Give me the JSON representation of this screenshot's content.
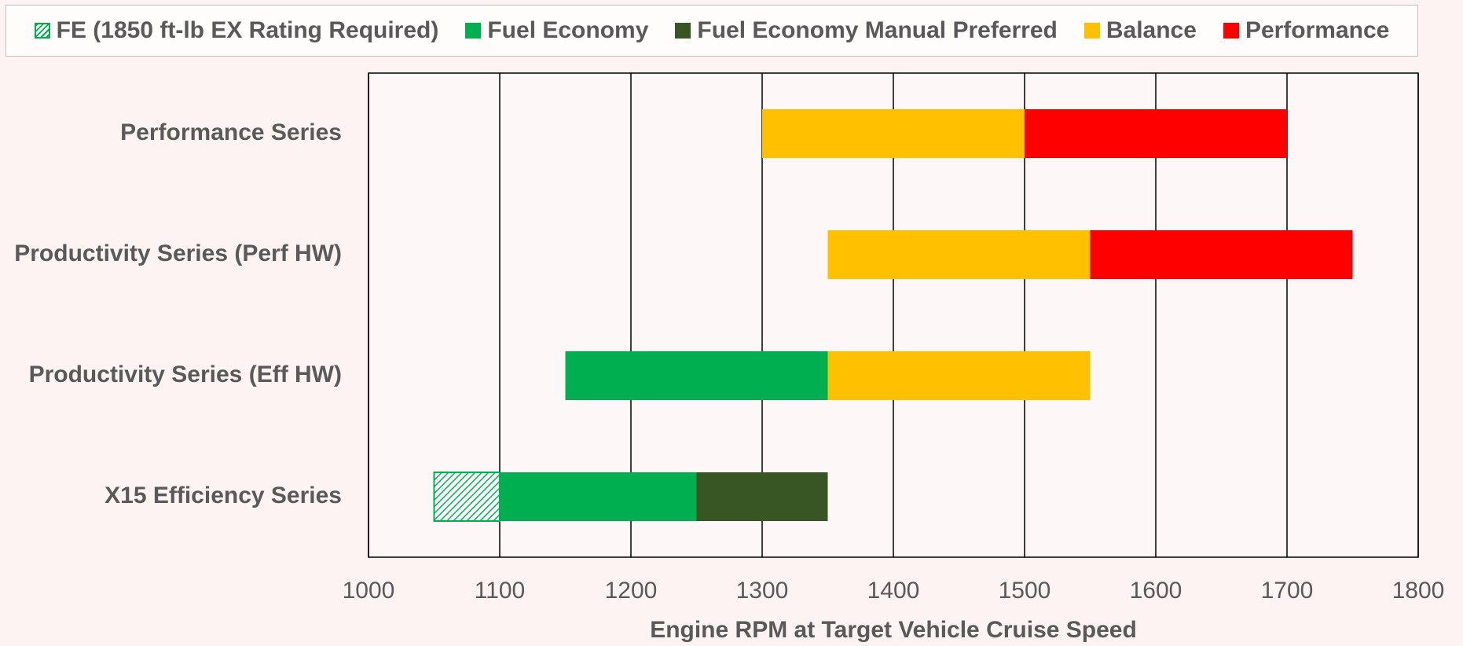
{
  "chart_data": {
    "type": "floating-bar",
    "x_label": "Engine RPM at Target Vehicle Cruise Speed",
    "categories": [
      "Performance Series",
      "Productivity Series (Perf HW)",
      "Productivity Series (Eff HW)",
      "X15 Efficiency Series"
    ],
    "series": [
      {
        "name": "FE (1850 ft-lb EX Rating Required)",
        "color": "#00b050",
        "hatch": true,
        "values": [
          null,
          null,
          null,
          [
            1050,
            1100
          ]
        ]
      },
      {
        "name": "Fuel Economy",
        "color": "#00b050",
        "values": [
          null,
          null,
          [
            1150,
            1350
          ],
          [
            1100,
            1250
          ]
        ]
      },
      {
        "name": "Fuel Economy Manual Preferred",
        "color": "#375623",
        "values": [
          null,
          null,
          null,
          [
            1250,
            1350
          ]
        ]
      },
      {
        "name": "Balance",
        "color": "#ffc000",
        "values": [
          [
            1300,
            1500
          ],
          [
            1350,
            1550
          ],
          [
            1350,
            1550
          ],
          null
        ]
      },
      {
        "name": "Performance",
        "color": "#ff0000",
        "values": [
          [
            1500,
            1700
          ],
          [
            1550,
            1750
          ],
          null,
          null
        ]
      }
    ],
    "xlim": [
      1000,
      1800
    ],
    "xticks": [
      1000,
      1100,
      1200,
      1300,
      1400,
      1500,
      1600,
      1700,
      1800
    ],
    "grid": true
  }
}
